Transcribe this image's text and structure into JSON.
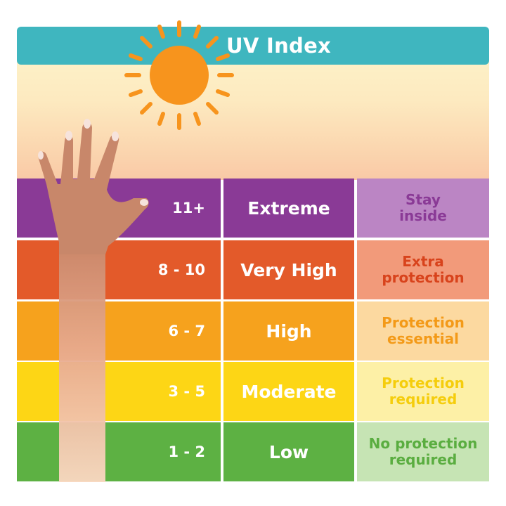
{
  "title": "UV Index",
  "colors": {
    "teal": "#3fb6bf",
    "extreme": "#8a3a96",
    "very_high": "#e35a2a",
    "high": "#f6a21d",
    "moderate": "#fdd615",
    "low": "#5db143"
  },
  "rows": [
    {
      "range": "11+",
      "level": "Extreme",
      "advice": "Stay\ninside",
      "bg": "#8a3a96",
      "advice_bg": "#bb85c4",
      "advice_color": "#8a3a96"
    },
    {
      "range": "8 - 10",
      "level": "Very High",
      "advice": "Extra\nprotection",
      "bg": "#e35a2a",
      "advice_bg": "#f29a7a",
      "advice_color": "#d8431c"
    },
    {
      "range": "6 - 7",
      "level": "High",
      "advice": "Protection\nessential",
      "bg": "#f6a21d",
      "advice_bg": "#fcd9a0",
      "advice_color": "#f39a18"
    },
    {
      "range": "3 - 5",
      "level": "Moderate",
      "advice": "Protection\nrequired",
      "bg": "#fdd615",
      "advice_bg": "#fdf0a6",
      "advice_color": "#f5cd0c"
    },
    {
      "range": "1 - 2",
      "level": "Low",
      "advice": "No protection\nrequired",
      "bg": "#5db143",
      "advice_bg": "#c6e4b4",
      "advice_color": "#5aad40"
    }
  ]
}
